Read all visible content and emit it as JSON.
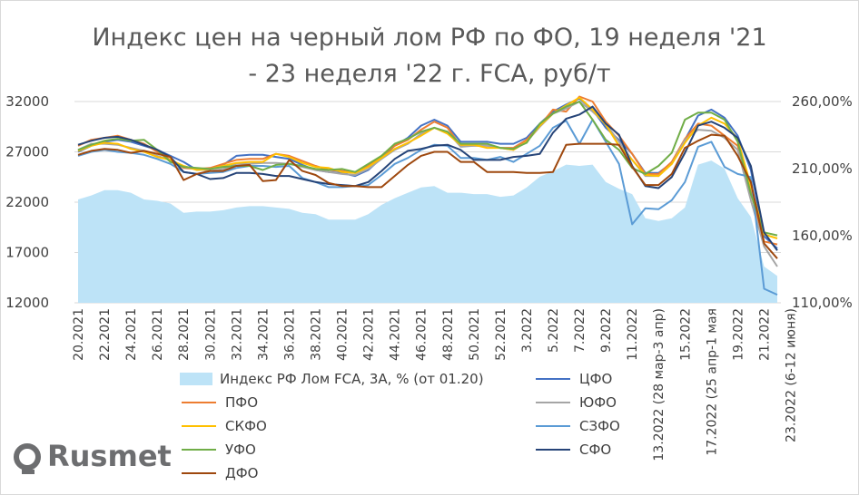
{
  "chart_data": {
    "type": "line",
    "title": "Индекс цен на черный лом РФ по ФО, 19 неделя '21 - 23 неделя '22 г. FCA, руб/т",
    "title_line1": "Индекс цен на черный лом РФ по ФО, 19 неделя '21",
    "title_line2": "- 23 неделя '22 г. FCA, руб/т",
    "ylim": [
      12000,
      32000
    ],
    "y2lim": [
      110,
      260
    ],
    "y_ticks": [
      "32000",
      "27000",
      "22000",
      "17000",
      "12000"
    ],
    "y2_ticks": [
      "260,00%",
      "210,00%",
      "160,00%",
      "110,00%"
    ],
    "x_tick_labels": [
      "20.2021",
      "22.2021",
      "24.2021",
      "26.2021",
      "28.2021",
      "30.2021",
      "32.2021",
      "34.2021",
      "36.2021",
      "38.2021",
      "40.2021",
      "42.2021",
      "44.2021",
      "46.2021",
      "48.2021",
      "50.2021",
      "52.2021",
      "3.2022",
      "5.2022",
      "7.2022",
      "9.2022",
      "11.2022",
      "13.2022 (28 мар-3 апр)",
      "15.2022",
      "17.2022 (25 апр-1 мая",
      "19.2022",
      "21.2022",
      "23.2022 (6-12 июня)"
    ],
    "series": [
      {
        "name": "Индекс РФ Лом FCA, 3А, % (от 01.20)",
        "kind": "area",
        "axis": "right",
        "color": "#bde3f7",
        "values": [
          187,
          190,
          194,
          194,
          192,
          187,
          186,
          184,
          177,
          178,
          178,
          179,
          181,
          182,
          182,
          181,
          180,
          177,
          176,
          172,
          172,
          172,
          176,
          183,
          188,
          192,
          196,
          197,
          192,
          192,
          191,
          191,
          189,
          190,
          196,
          204,
          208,
          213,
          212,
          213,
          200,
          195,
          191,
          173,
          171,
          173,
          181,
          213,
          216,
          210,
          188,
          174,
          137,
          130
        ]
      },
      {
        "name": "ЦФО",
        "kind": "line",
        "axis": "left",
        "color": "#4472c4",
        "values": [
          27000,
          27600,
          28000,
          28200,
          28000,
          27600,
          27200,
          26600,
          26000,
          25200,
          25300,
          25700,
          26600,
          26700,
          26700,
          26500,
          26300,
          25700,
          25200,
          25000,
          24900,
          24600,
          25200,
          26400,
          27600,
          28400,
          29600,
          30200,
          29600,
          28000,
          28000,
          28000,
          27800,
          27800,
          28400,
          29800,
          31000,
          31700,
          32300,
          31200,
          29400,
          28200,
          26800,
          24900,
          24900,
          25900,
          28200,
          30600,
          31200,
          30400,
          28600,
          25200,
          18600,
          17400
        ]
      },
      {
        "name": "ПФО",
        "kind": "line",
        "axis": "left",
        "color": "#ed7d31",
        "values": [
          27600,
          28200,
          28400,
          28600,
          28200,
          27800,
          27000,
          26200,
          25400,
          25300,
          25400,
          25800,
          26200,
          26300,
          26300,
          26800,
          26600,
          26100,
          25600,
          25200,
          25100,
          24900,
          25600,
          26600,
          27600,
          28200,
          29200,
          30000,
          29400,
          27600,
          27600,
          27600,
          27400,
          27400,
          28200,
          29600,
          31200,
          31000,
          32500,
          32000,
          30000,
          28600,
          26800,
          24800,
          24800,
          26000,
          28300,
          29800,
          29600,
          28600,
          27600,
          23000,
          18100,
          17800
        ]
      },
      {
        "name": "ЮФО",
        "kind": "line",
        "axis": "left",
        "color": "#a5a5a5",
        "values": [
          27200,
          27800,
          27800,
          27700,
          27400,
          27100,
          26600,
          26200,
          25500,
          25300,
          25100,
          25300,
          25800,
          25800,
          25900,
          25900,
          25800,
          25500,
          25200,
          25000,
          24800,
          24700,
          25300,
          26300,
          27200,
          27800,
          28800,
          29400,
          29000,
          27500,
          27600,
          27600,
          27400,
          27200,
          28000,
          29500,
          30800,
          31300,
          32000,
          31000,
          29800,
          28000,
          26200,
          24600,
          24600,
          25800,
          28200,
          29200,
          29100,
          28400,
          27200,
          22200,
          17600,
          15600
        ]
      },
      {
        "name": "СКФО",
        "kind": "line",
        "axis": "left",
        "color": "#ffc000",
        "values": [
          27100,
          27600,
          27900,
          27800,
          27300,
          27000,
          26500,
          26200,
          25600,
          25200,
          25300,
          25600,
          25900,
          26000,
          26000,
          26800,
          26500,
          25900,
          25500,
          25400,
          25000,
          24900,
          25500,
          26400,
          27300,
          27900,
          28600,
          29400,
          28800,
          27700,
          27700,
          27400,
          27400,
          27200,
          28000,
          29600,
          30800,
          31600,
          32400,
          31200,
          29700,
          27600,
          26200,
          24700,
          24600,
          25800,
          27900,
          29600,
          30400,
          29800,
          28300,
          23600,
          18800,
          18400
        ]
      },
      {
        "name": "СЗФО",
        "kind": "line",
        "axis": "left",
        "color": "#5b9bd5",
        "values": [
          26600,
          27000,
          27200,
          27000,
          26900,
          26700,
          26300,
          25800,
          25000,
          24800,
          24900,
          25000,
          25400,
          25600,
          25600,
          25500,
          25600,
          24400,
          24000,
          23500,
          23500,
          23600,
          23700,
          24700,
          25800,
          26400,
          27200,
          27700,
          27600,
          26400,
          26400,
          26200,
          26500,
          26000,
          26800,
          27600,
          29400,
          30100,
          27800,
          30200,
          28000,
          25800,
          19800,
          21400,
          21300,
          22200,
          24000,
          27500,
          28000,
          25500,
          24800,
          24500,
          13400,
          12800
        ]
      },
      {
        "name": "УФО",
        "kind": "line",
        "axis": "left",
        "color": "#70ad47",
        "values": [
          27200,
          27700,
          28100,
          28300,
          28100,
          28200,
          27200,
          26000,
          25500,
          25400,
          25300,
          25500,
          25600,
          25600,
          25200,
          25700,
          25800,
          25600,
          25300,
          25200,
          25300,
          25000,
          25800,
          26600,
          27800,
          28300,
          29000,
          29400,
          29000,
          27800,
          27800,
          27800,
          27400,
          27300,
          27900,
          29800,
          30800,
          31500,
          32000,
          30200,
          28200,
          27200,
          25400,
          24800,
          25600,
          26900,
          30200,
          30900,
          30900,
          30200,
          28000,
          22800,
          19000,
          18700
        ]
      },
      {
        "name": "СФО",
        "kind": "line",
        "axis": "left",
        "color": "#264478",
        "values": [
          27700,
          28100,
          28400,
          28500,
          28200,
          27700,
          27200,
          26500,
          25000,
          24800,
          24300,
          24400,
          24900,
          24900,
          24800,
          24600,
          24600,
          24300,
          24000,
          23800,
          23700,
          23600,
          24000,
          25100,
          26300,
          27100,
          27300,
          27600,
          27700,
          27200,
          26200,
          26200,
          26200,
          26500,
          26600,
          26800,
          28900,
          30300,
          30700,
          31500,
          29800,
          28700,
          25600,
          23600,
          23400,
          24500,
          26900,
          29600,
          30000,
          29400,
          28400,
          25600,
          19000,
          17200
        ]
      },
      {
        "name": "ДФО",
        "kind": "line",
        "axis": "left",
        "color": "#9e480e",
        "values": [
          26700,
          27100,
          27300,
          27200,
          26900,
          27100,
          26800,
          26500,
          24200,
          24800,
          25100,
          25100,
          25600,
          25700,
          24100,
          24200,
          26200,
          25100,
          24700,
          23900,
          23600,
          23600,
          23500,
          23500,
          24600,
          25700,
          26600,
          27000,
          27000,
          26000,
          26000,
          25000,
          25000,
          25000,
          24900,
          24900,
          25000,
          27700,
          27800,
          27800,
          27800,
          27700,
          25500,
          23700,
          23700,
          24800,
          27400,
          28100,
          28700,
          28600,
          26600,
          24000,
          17900,
          16400
        ]
      }
    ]
  },
  "brand": {
    "name": "Rusmet"
  }
}
